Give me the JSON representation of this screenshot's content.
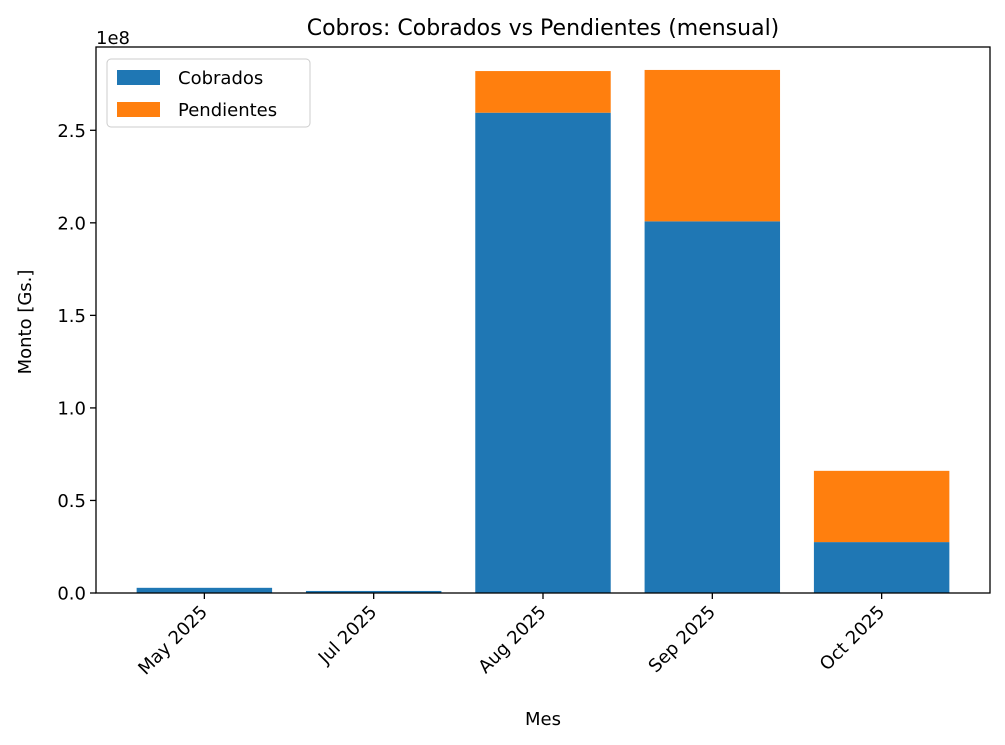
{
  "chart_data": {
    "type": "bar",
    "stacked": true,
    "title": "Cobros: Cobrados vs Pendientes (mensual)",
    "xlabel": "Mes",
    "ylabel": "Monto [Gs.]",
    "y_offset_text": "1e8",
    "categories": [
      "May 2025",
      "Jul 2025",
      "Aug 2025",
      "Sep 2025",
      "Oct 2025"
    ],
    "series": [
      {
        "name": "Cobrados",
        "color": "#1f77b4",
        "values": [
          2800000,
          1100000,
          259500000,
          200800000,
          27500000
        ]
      },
      {
        "name": "Pendientes",
        "color": "#ff7f0e",
        "values": [
          0,
          0,
          22500000,
          81800000,
          38500000
        ]
      }
    ],
    "ylim": [
      0,
      295000000
    ],
    "yticks": [
      0,
      50000000,
      100000000,
      150000000,
      200000000,
      250000000
    ],
    "ytick_labels": [
      "0.0",
      "0.5",
      "1.0",
      "1.5",
      "2.0",
      "2.5"
    ],
    "legend_position": "upper-left",
    "grid": false
  }
}
